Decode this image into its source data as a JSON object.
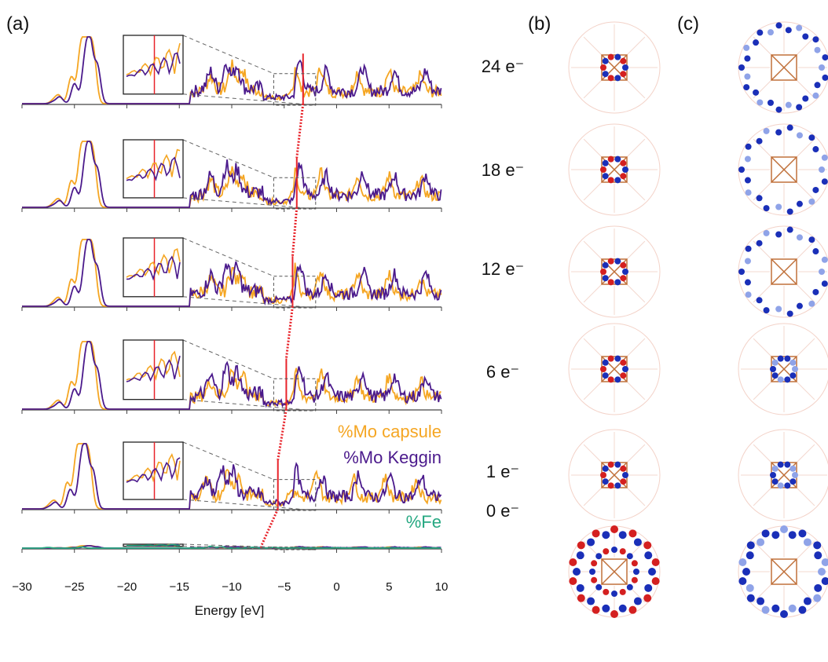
{
  "panel_labels": [
    "(a)",
    "(b)",
    "(c)"
  ],
  "chart_data": {
    "type": "line",
    "xlabel": "Energy [eV]",
    "ylabel": "",
    "xlim": [
      -30,
      10
    ],
    "x_ticks": [
      -30,
      -25,
      -20,
      -15,
      -10,
      -5,
      0,
      5,
      10
    ],
    "x_tick_labels": [
      "−30",
      "−25",
      "−20",
      "−15",
      "−10",
      "−5",
      "0",
      "5",
      "10"
    ],
    "legend": {
      "placement": "right",
      "entries": [
        {
          "name": "%Mo capsule",
          "color": "#f5a623"
        },
        {
          "name": "%Mo Keggin",
          "color": "#4b1a8c"
        },
        {
          "name": "%Fe",
          "color": "#26a882"
        }
      ]
    },
    "colors": {
      "capsule": "#f5a623",
      "keggin": "#4b1a8c",
      "fe": "#26a882",
      "fermi": "#e8232a",
      "zoom_box": "#555555"
    },
    "grid": false,
    "electron_labels": [
      "24 e⁻",
      "18 e⁻",
      "12 e⁻",
      "6 e⁻",
      "1 e⁻",
      "0 e⁻"
    ],
    "fermi_levels_eV": [
      -3.2,
      -3.8,
      -4.2,
      -4.8,
      -5.6,
      -7.2
    ],
    "zoom_window_eV": [
      -6,
      -2
    ],
    "series": [
      {
        "name": "%Mo capsule",
        "peaks": [
          [
            -27,
            0.05
          ],
          [
            -26.5,
            0.12
          ],
          [
            -25.3,
            0.4
          ],
          [
            -24.4,
            0.8
          ],
          [
            -23.8,
            0.95
          ],
          [
            -23.2,
            0.75
          ],
          [
            -12,
            0.2
          ],
          [
            -10,
            0.35
          ],
          [
            -9,
            0.3
          ],
          [
            -4,
            0.4
          ],
          [
            -1.5,
            0.35
          ],
          [
            2,
            0.3
          ],
          [
            5,
            0.3
          ],
          [
            8,
            0.25
          ]
        ]
      },
      {
        "name": "%Mo Keggin",
        "peaks": [
          [
            -27,
            0.03
          ],
          [
            -26.4,
            0.1
          ],
          [
            -25,
            0.3
          ],
          [
            -24,
            0.6
          ],
          [
            -23.5,
            0.85
          ],
          [
            -22.8,
            0.55
          ],
          [
            -12,
            0.25
          ],
          [
            -10.5,
            0.4
          ],
          [
            -9.5,
            0.35
          ],
          [
            -3.5,
            0.45
          ],
          [
            -1,
            0.3
          ],
          [
            2.5,
            0.35
          ],
          [
            5.5,
            0.3
          ],
          [
            8.5,
            0.3
          ]
        ]
      },
      {
        "name": "%Fe",
        "peaks": [
          [
            -27.5,
            0.3
          ],
          [
            -24.3,
            0.5
          ],
          [
            -15,
            0.1
          ],
          [
            -12,
            0.7
          ],
          [
            -11,
            0.5
          ],
          [
            -8,
            0.3
          ],
          [
            -6,
            0.6
          ],
          [
            -4,
            0.15
          ],
          [
            0,
            0.1
          ],
          [
            5,
            0.1
          ]
        ]
      }
    ]
  }
}
